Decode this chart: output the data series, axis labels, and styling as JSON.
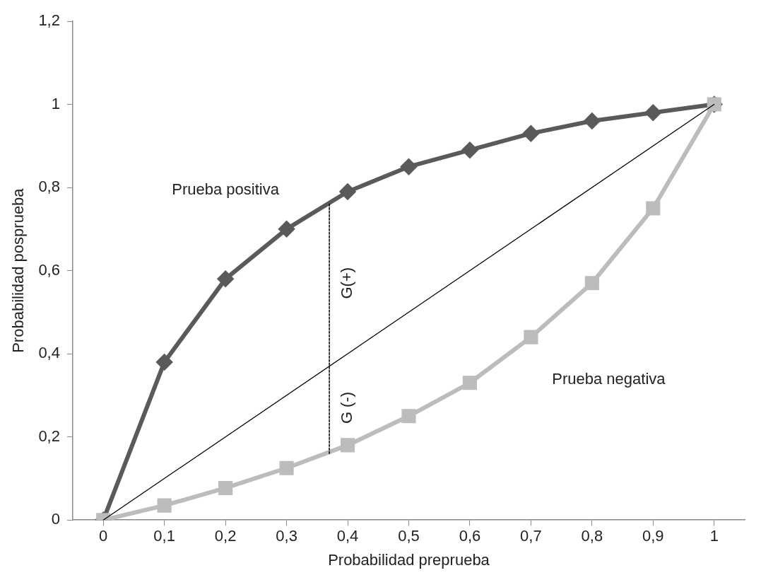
{
  "chart_data": {
    "type": "line",
    "xlabel": "Probabilidad preprueba",
    "ylabel": "Probabilidad posprueba",
    "xlim": [
      -0.05,
      1.05
    ],
    "xticks": [
      0,
      {
        "value": 0.1,
        "label": "0,1"
      },
      {
        "value": 0.2,
        "label": "0,2"
      },
      {
        "value": 0.3,
        "label": "0,3"
      },
      {
        "value": 0.4,
        "label": "0,4"
      },
      {
        "value": 0.5,
        "label": "0,5"
      },
      {
        "value": 0.6,
        "label": "0,6"
      },
      {
        "value": 0.7,
        "label": "0,7"
      },
      {
        "value": 0.8,
        "label": "0,8"
      },
      {
        "value": 0.9,
        "label": "0,9"
      },
      1
    ],
    "ylim": [
      0,
      1.2
    ],
    "yticks": [
      0,
      {
        "value": 0.2,
        "label": "0,2"
      },
      {
        "value": 0.4,
        "label": "0,4"
      },
      {
        "value": 0.6,
        "label": "0,6"
      },
      {
        "value": 0.8,
        "label": "0,8"
      },
      1,
      {
        "value": 1.2,
        "label": "1,2"
      }
    ],
    "x": [
      0,
      0.1,
      0.2,
      0.3,
      0.4,
      0.5,
      0.6,
      0.7,
      0.8,
      0.9,
      1
    ],
    "series": [
      {
        "name": "Prueba positiva",
        "color": "#5a5a5a",
        "marker": "diamond",
        "values": [
          0,
          0.38,
          0.58,
          0.7,
          0.79,
          0.85,
          0.89,
          0.93,
          0.96,
          0.98,
          1
        ]
      },
      {
        "name": "Prueba negativa",
        "color": "#bcbcbc",
        "marker": "square",
        "values": [
          0,
          0.035,
          0.077,
          0.125,
          0.18,
          0.25,
          0.33,
          0.44,
          0.57,
          0.75,
          1
        ]
      },
      {
        "color": "#000000",
        "marker": "none",
        "x": [
          0,
          1
        ],
        "values": [
          0,
          1
        ]
      },
      {
        "color": "#000000",
        "marker": "none",
        "line_style": "dashed",
        "x": [
          0.37,
          0.37
        ],
        "values": [
          0.16,
          0.76
        ]
      }
    ],
    "annotations": [
      {
        "text": "G(+)",
        "x": 0.37,
        "y": 0.57
      },
      {
        "text": "G (-)",
        "x": 0.37,
        "y": 0.27
      }
    ],
    "grid": false,
    "legend": false
  }
}
